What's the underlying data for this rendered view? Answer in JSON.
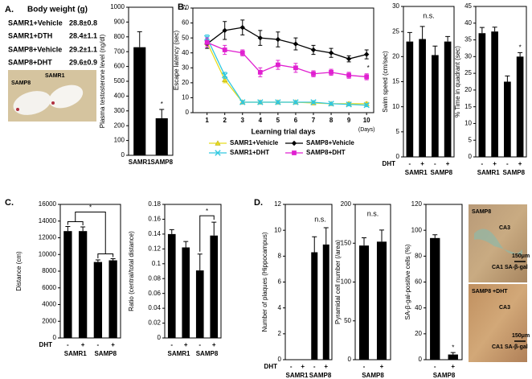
{
  "panels": {
    "a": "A.",
    "b": "B.",
    "c": "C.",
    "d": "D."
  },
  "body_weight": {
    "title": "Body weight (g)",
    "rows": [
      [
        "SAMR1+Vehicle",
        "28.8±0.8"
      ],
      [
        "SAMR1+DTH",
        "28.4±1.1"
      ],
      [
        "SAMP8+Vehicle",
        "29.2±1.1"
      ],
      [
        "SAMP8+DHT",
        "29.6±0.9"
      ]
    ]
  },
  "mouse_photo": {
    "labels": [
      "SAMP8",
      "SAMR1"
    ]
  },
  "brain_photos": [
    {
      "labels": [
        "SAMP8",
        "CA3",
        "150μm",
        "CA1 SA-β-gal"
      ]
    },
    {
      "labels": [
        "SAMP8 +DHT",
        "CA3",
        "150μm",
        "CA1 SA-β-gal"
      ]
    }
  ],
  "chart_data": [
    {
      "type": "bar",
      "ylabel": "Plasma testosterone level (ng/dl)",
      "categories": [
        "SAMR1",
        "SAMP8"
      ],
      "values": [
        730,
        250
      ],
      "errors": [
        105,
        60
      ],
      "color": "#000000",
      "ylim": [
        0,
        1000
      ],
      "yticks": [
        0,
        100,
        200,
        300,
        400,
        500,
        600,
        700,
        800,
        900,
        1000
      ],
      "annotations": [
        "*"
      ]
    },
    {
      "type": "line",
      "xlabel": "Learning trial days",
      "ylabel": "Escape latency (sec)",
      "x": [
        1,
        2,
        3,
        4,
        5,
        6,
        7,
        8,
        9,
        10
      ],
      "xlim": [
        0.2,
        10.4
      ],
      "xticks": [
        1,
        2,
        3,
        4,
        5,
        6,
        7,
        8,
        9,
        10
      ],
      "ylim": [
        0,
        70
      ],
      "yticks": [
        0,
        10,
        20,
        30,
        40,
        50,
        60,
        70
      ],
      "series": [
        {
          "name": "SAMR1+Vehicle",
          "color": "#e8dc20",
          "marker": "triangle",
          "values": [
            47,
            22,
            7,
            7,
            7,
            7,
            6.5,
            6,
            6,
            6
          ],
          "errors": [
            2,
            2,
            1,
            1,
            1,
            1,
            1,
            1,
            1,
            1
          ]
        },
        {
          "name": "SAMP8+Vehicle",
          "color": "#000000",
          "marker": "diamond",
          "values": [
            46,
            55,
            57,
            50,
            49,
            46,
            42,
            40,
            36,
            39
          ],
          "errors": [
            3,
            6,
            5,
            5,
            5,
            4,
            3,
            3,
            2,
            3
          ]
        },
        {
          "name": "SAMR1+DHT",
          "color": "#30c8e0",
          "marker": "x",
          "values": [
            50,
            25,
            7,
            7,
            7,
            7,
            7,
            6,
            5.5,
            5
          ],
          "errors": [
            2,
            2,
            1,
            1,
            1,
            1,
            1,
            1,
            1,
            1
          ]
        },
        {
          "name": "SAMP8+DHT",
          "color": "#e020d0",
          "marker": "square",
          "values": [
            47,
            42,
            40,
            27,
            32,
            30,
            26,
            27,
            25,
            24
          ],
          "errors": [
            3,
            3,
            2,
            3,
            3,
            3,
            2,
            2,
            2,
            2
          ]
        }
      ],
      "annotations": [
        "(Days)",
        "*"
      ]
    },
    {
      "type": "bar",
      "ylabel": "Swim speed (cm/sec)",
      "row_label": "DHT",
      "categories": [
        "-",
        "+",
        "-",
        "+"
      ],
      "groups": [
        "SAMR1",
        "SAMP8"
      ],
      "values": [
        23,
        23.5,
        20.3,
        23
      ],
      "errors": [
        1.8,
        2.5,
        1.8,
        1
      ],
      "color": "#000000",
      "ylim": [
        0,
        30
      ],
      "yticks": [
        0,
        5,
        10,
        15,
        20,
        25,
        30
      ],
      "annotations": [
        "n.s."
      ]
    },
    {
      "type": "bar",
      "ylabel": "% Time in quadrant (sec)",
      "categories": [
        "-",
        "+",
        "-",
        "+"
      ],
      "groups": [
        "SAMR1",
        "SAMP8"
      ],
      "values": [
        37,
        37.5,
        22.5,
        30
      ],
      "errors": [
        1.7,
        1.3,
        1.7,
        1.2
      ],
      "color": "#000000",
      "ylim": [
        0,
        45
      ],
      "yticks": [
        0,
        5,
        10,
        15,
        20,
        25,
        30,
        35,
        40,
        45
      ],
      "annotations": [
        "*"
      ]
    },
    {
      "type": "bar",
      "ylabel": "Distance (cm)",
      "row_label": "DHT",
      "categories": [
        "-",
        "+",
        "-",
        "+"
      ],
      "groups": [
        "SAMR1",
        "SAMP8"
      ],
      "values": [
        12800,
        12800,
        9100,
        9300
      ],
      "errors": [
        550,
        500,
        250,
        200
      ],
      "color": "#000000",
      "ylim": [
        0,
        16000
      ],
      "yticks": [
        0,
        2000,
        4000,
        6000,
        8000,
        10000,
        12000,
        14000,
        16000
      ],
      "annotations": [
        "*"
      ]
    },
    {
      "type": "bar",
      "ylabel": "Ratio (central/total distance)",
      "categories": [
        "-",
        "+",
        "-",
        "+"
      ],
      "groups": [
        "SAMR1",
        "SAMP8"
      ],
      "values": [
        0.14,
        0.122,
        0.091,
        0.138
      ],
      "errors": [
        0.006,
        0.008,
        0.022,
        0.018
      ],
      "color": "#000000",
      "ylim": [
        0,
        0.18
      ],
      "yticks": [
        0,
        0.02,
        0.04,
        0.06,
        0.08,
        0.1,
        0.12,
        0.14,
        0.16,
        0.18
      ],
      "annotations": [
        "*"
      ]
    },
    {
      "type": "bar",
      "ylabel": "Number of plaques (Hippocampus)",
      "row_label": "DHT",
      "categories": [
        "-",
        "+",
        "-",
        "+"
      ],
      "groups": [
        "SAMR1",
        "SAMP8"
      ],
      "values": [
        0,
        0,
        8.3,
        8.9
      ],
      "errors": [
        0,
        0,
        1.2,
        1.3
      ],
      "color": "#000000",
      "ylim": [
        0,
        12
      ],
      "yticks": [
        0,
        2,
        4,
        6,
        8,
        10,
        12
      ],
      "annotations": [
        "n.s."
      ]
    },
    {
      "type": "bar",
      "ylabel": "Pyramidal cell number (/area)",
      "categories": [
        "-",
        "+"
      ],
      "groups": [
        "SAMP8"
      ],
      "values": [
        147,
        152
      ],
      "errors": [
        10,
        15
      ],
      "color": "#000000",
      "ylim": [
        0,
        200
      ],
      "yticks": [
        0,
        50,
        100,
        150,
        200
      ],
      "annotations": [
        "n.s."
      ]
    },
    {
      "type": "bar",
      "ylabel": "SA-β-gal-positive cells (%)",
      "categories": [
        "-",
        "+"
      ],
      "groups": [
        "SAMP8"
      ],
      "values": [
        94,
        4
      ],
      "errors": [
        2.5,
        1.5
      ],
      "color": "#000000",
      "ylim": [
        0,
        120
      ],
      "yticks": [
        0,
        20,
        40,
        60,
        80,
        100,
        120
      ],
      "annotations": [
        "*"
      ]
    }
  ]
}
